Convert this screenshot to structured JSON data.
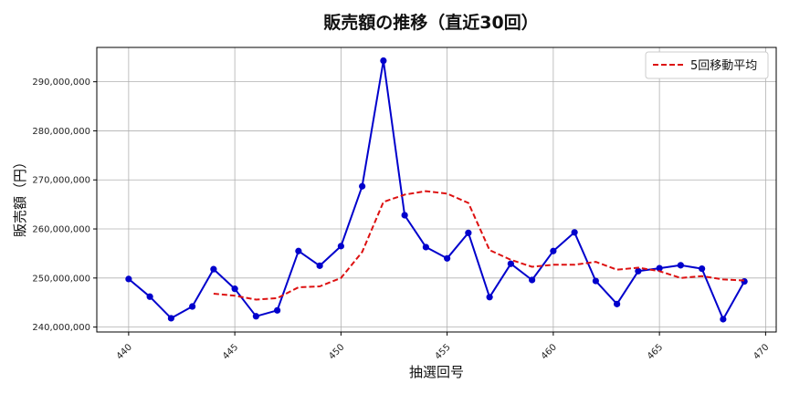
{
  "chart_data": {
    "type": "line",
    "title": "販売額の推移（直近30回）",
    "xlabel": "抽選回号",
    "ylabel": "販売額（円）",
    "xlim": [
      438.5,
      470.5
    ],
    "ylim": [
      239000000,
      297000000
    ],
    "xticks": [
      440,
      445,
      450,
      455,
      460,
      465,
      470
    ],
    "yticks": [
      240000000,
      250000000,
      260000000,
      270000000,
      280000000,
      290000000
    ],
    "ytick_labels": [
      "240,000,000",
      "250,000,000",
      "260,000,000",
      "270,000,000",
      "280,000,000",
      "290,000,000"
    ],
    "grid": true,
    "legend_position": "top-right",
    "series": [
      {
        "name": "",
        "style": "solid-with-markers",
        "color": "#0000cc",
        "x": [
          440,
          441,
          442,
          443,
          444,
          445,
          446,
          447,
          448,
          449,
          450,
          451,
          452,
          453,
          454,
          455,
          456,
          457,
          458,
          459,
          460,
          461,
          462,
          463,
          464,
          465,
          466,
          467,
          468,
          469
        ],
        "values": [
          249800000,
          246200000,
          241800000,
          244200000,
          251800000,
          247800000,
          242200000,
          243400000,
          255500000,
          252500000,
          256500000,
          268700000,
          294300000,
          262800000,
          256300000,
          254000000,
          259200000,
          246100000,
          252900000,
          249600000,
          255500000,
          259300000,
          249400000,
          244700000,
          251400000,
          252000000,
          252600000,
          251900000,
          241600000,
          249300000
        ]
      },
      {
        "name": "5回移動平均",
        "style": "dashed",
        "color": "#dd1111",
        "x": [
          444,
          445,
          446,
          447,
          448,
          449,
          450,
          451,
          452,
          453,
          454,
          455,
          456,
          457,
          458,
          459,
          460,
          461,
          462,
          463,
          464,
          465,
          466,
          467,
          468,
          469
        ],
        "values": [
          246800000,
          246400000,
          245600000,
          245900000,
          248100000,
          248300000,
          250000000,
          255300000,
          265500000,
          267000000,
          267700000,
          267200000,
          265300000,
          255700000,
          253700000,
          252300000,
          252700000,
          252700000,
          253300000,
          251700000,
          252100000,
          251400000,
          250000000,
          250400000,
          249700000,
          249500000
        ]
      }
    ]
  }
}
